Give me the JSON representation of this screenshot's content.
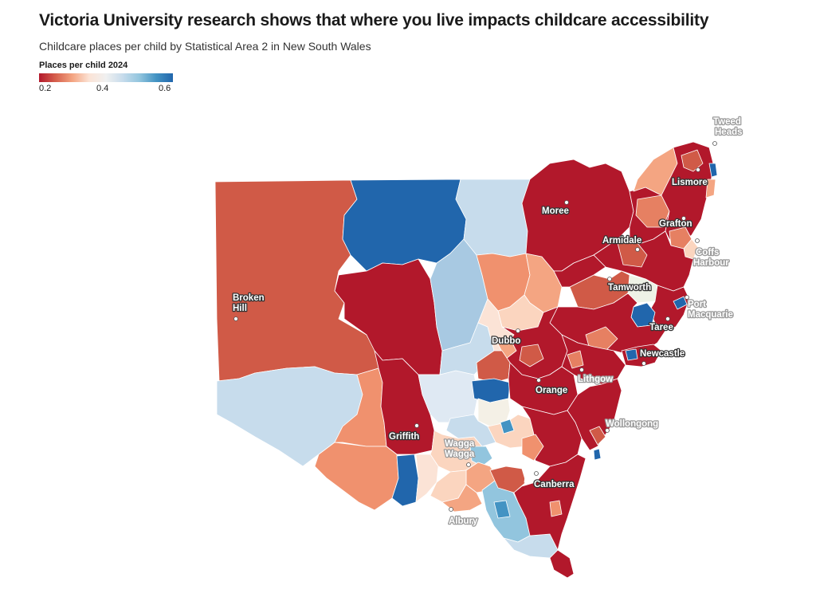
{
  "header": {
    "title": "Victoria University research shows that where you live impacts childcare accessibility",
    "subtitle": "Childcare places per child by Statistical Area 2 in New South Wales"
  },
  "legend": {
    "title": "Places per child 2024",
    "ticks": [
      "0.2",
      "0.4",
      "0.6"
    ],
    "range": [
      0.2,
      0.6
    ],
    "colors": [
      "#b2182b",
      "#d6604d",
      "#f4a582",
      "#fbe3d6",
      "#f0f0f0",
      "#c7dcec",
      "#92c5de",
      "#4393c3",
      "#2166ac"
    ]
  },
  "map": {
    "region": "New South Wales",
    "cities": {
      "tweed_heads": [
        "Tweed",
        "Heads"
      ],
      "lismore": "Lismore",
      "moree": "Moree",
      "grafton": "Grafton",
      "armidale": "Armidale",
      "coffs_harbour": [
        "Coffs",
        "Harbour"
      ],
      "tamworth": "Tamworth",
      "port_macquarie": [
        "Port",
        "Macquarie"
      ],
      "broken_hill": [
        "Broken",
        "Hill"
      ],
      "taree": "Taree",
      "dubbo": "Dubbo",
      "newcastle": "Newcastle",
      "lithgow": "Lithgow",
      "orange": "Orange",
      "wollongong": "Wollongong",
      "griffith": "Griffith",
      "wagga_wagga": [
        "Wagga",
        "Wagga"
      ],
      "canberra": "Canberra",
      "albury": "Albury"
    }
  }
}
